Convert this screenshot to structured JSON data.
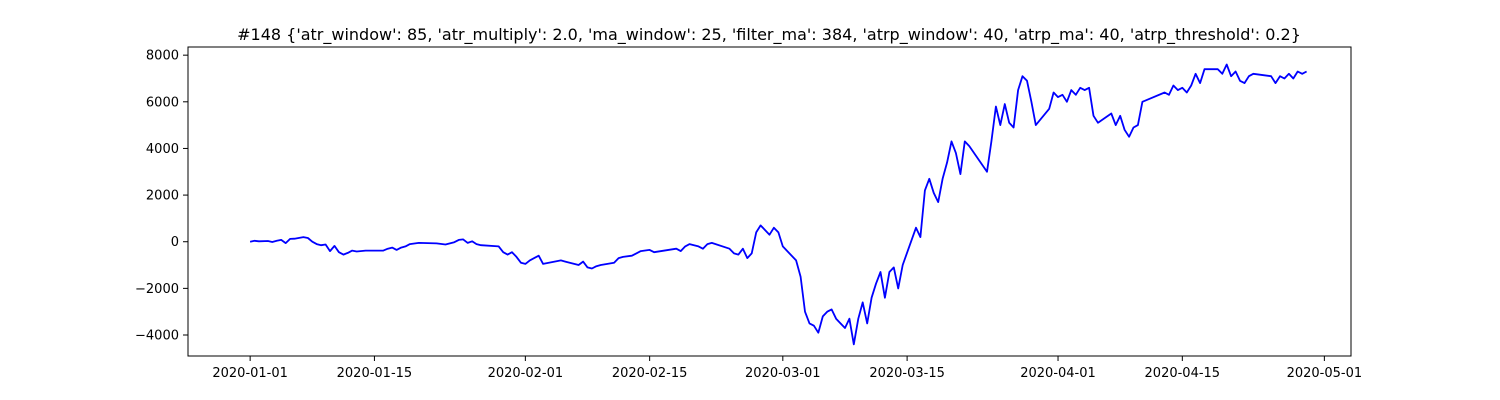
{
  "chart_data": {
    "type": "line",
    "title": "#148 {'atr_window': 85, 'atr_multiply': 2.0, 'ma_window': 25, 'filter_ma': 384, 'atrp_window': 40, 'atrp_ma': 40, 'atrp_threshold': 0.2}",
    "xlabel": "",
    "ylabel": "",
    "x_is_date": true,
    "xlim": [
      "2019-12-25",
      "2020-05-04"
    ],
    "ylim": [
      -4900,
      8350
    ],
    "grid": false,
    "legend": "none",
    "x_ticks": [
      "2020-01-01",
      "2020-01-15",
      "2020-02-01",
      "2020-02-15",
      "2020-03-01",
      "2020-03-15",
      "2020-04-01",
      "2020-04-15",
      "2020-05-01"
    ],
    "y_ticks": [
      -4000,
      -2000,
      0,
      2000,
      4000,
      6000,
      8000
    ],
    "series": [
      {
        "color": "#0000ff",
        "points": [
          [
            "2020-01-01",
            0
          ],
          [
            "2020-01-01T12:00",
            40
          ],
          [
            "2020-01-02",
            20
          ],
          [
            "2020-01-03",
            30
          ],
          [
            "2020-01-03T12:00",
            -10
          ],
          [
            "2020-01-04",
            40
          ],
          [
            "2020-01-04T12:00",
            80
          ],
          [
            "2020-01-05",
            -60
          ],
          [
            "2020-01-05T12:00",
            120
          ],
          [
            "2020-01-06",
            130
          ],
          [
            "2020-01-07",
            200
          ],
          [
            "2020-01-07T12:00",
            160
          ],
          [
            "2020-01-08",
            0
          ],
          [
            "2020-01-08T12:00",
            -100
          ],
          [
            "2020-01-09",
            -150
          ],
          [
            "2020-01-09T12:00",
            -120
          ],
          [
            "2020-01-10",
            -400
          ],
          [
            "2020-01-10T12:00",
            -180
          ],
          [
            "2020-01-11",
            -450
          ],
          [
            "2020-01-11T12:00",
            -550
          ],
          [
            "2020-01-12",
            -480
          ],
          [
            "2020-01-12T12:00",
            -380
          ],
          [
            "2020-01-13",
            -420
          ],
          [
            "2020-01-14",
            -380
          ],
          [
            "2020-01-16",
            -380
          ],
          [
            "2020-01-16T12:00",
            -300
          ],
          [
            "2020-01-17",
            -250
          ],
          [
            "2020-01-17T12:00",
            -350
          ],
          [
            "2020-01-18",
            -250
          ],
          [
            "2020-01-18T12:00",
            -200
          ],
          [
            "2020-01-19",
            -100
          ],
          [
            "2020-01-20",
            -50
          ],
          [
            "2020-01-21",
            -60
          ],
          [
            "2020-01-22",
            -70
          ],
          [
            "2020-01-23",
            -120
          ],
          [
            "2020-01-24",
            -20
          ],
          [
            "2020-01-24T12:00",
            80
          ],
          [
            "2020-01-25",
            100
          ],
          [
            "2020-01-25T12:00",
            -50
          ],
          [
            "2020-01-26",
            20
          ],
          [
            "2020-01-26T12:00",
            -100
          ],
          [
            "2020-01-27",
            -150
          ],
          [
            "2020-01-29",
            -200
          ],
          [
            "2020-01-29T12:00",
            -450
          ],
          [
            "2020-01-30",
            -550
          ],
          [
            "2020-01-30T12:00",
            -450
          ],
          [
            "2020-01-31",
            -650
          ],
          [
            "2020-01-31T12:00",
            -900
          ],
          [
            "2020-02-01",
            -950
          ],
          [
            "2020-02-01T12:00",
            -800
          ],
          [
            "2020-02-02",
            -700
          ],
          [
            "2020-02-02T12:00",
            -600
          ],
          [
            "2020-02-03",
            -950
          ],
          [
            "2020-02-05",
            -800
          ],
          [
            "2020-02-05T12:00",
            -850
          ],
          [
            "2020-02-06",
            -900
          ],
          [
            "2020-02-06T12:00",
            -950
          ],
          [
            "2020-02-07",
            -1000
          ],
          [
            "2020-02-07T12:00",
            -850
          ],
          [
            "2020-02-08",
            -1100
          ],
          [
            "2020-02-08T12:00",
            -1150
          ],
          [
            "2020-02-09",
            -1050
          ],
          [
            "2020-02-09T12:00",
            -1000
          ],
          [
            "2020-02-11",
            -900
          ],
          [
            "2020-02-11T12:00",
            -700
          ],
          [
            "2020-02-12",
            -650
          ],
          [
            "2020-02-13",
            -600
          ],
          [
            "2020-02-13T12:00",
            -500
          ],
          [
            "2020-02-14",
            -400
          ],
          [
            "2020-02-15",
            -350
          ],
          [
            "2020-02-15T12:00",
            -450
          ],
          [
            "2020-02-18",
            -300
          ],
          [
            "2020-02-18T12:00",
            -400
          ],
          [
            "2020-02-19",
            -200
          ],
          [
            "2020-02-19T12:00",
            -100
          ],
          [
            "2020-02-20",
            -150
          ],
          [
            "2020-02-20T12:00",
            -200
          ],
          [
            "2020-02-21",
            -300
          ],
          [
            "2020-02-21T12:00",
            -100
          ],
          [
            "2020-02-22",
            -50
          ],
          [
            "2020-02-24",
            -300
          ],
          [
            "2020-02-24T12:00",
            -500
          ],
          [
            "2020-02-25",
            -550
          ],
          [
            "2020-02-25T12:00",
            -300
          ],
          [
            "2020-02-26",
            -700
          ],
          [
            "2020-02-26T12:00",
            -500
          ],
          [
            "2020-02-27",
            400
          ],
          [
            "2020-02-27T12:00",
            700
          ],
          [
            "2020-02-28",
            500
          ],
          [
            "2020-02-28T12:00",
            300
          ],
          [
            "2020-02-29",
            600
          ],
          [
            "2020-02-29T12:00",
            400
          ],
          [
            "2020-03-01",
            -200
          ],
          [
            "2020-03-02T12:00",
            -800
          ],
          [
            "2020-03-03",
            -1500
          ],
          [
            "2020-03-03T12:00",
            -3000
          ],
          [
            "2020-03-04",
            -3500
          ],
          [
            "2020-03-04T12:00",
            -3600
          ],
          [
            "2020-03-05",
            -3900
          ],
          [
            "2020-03-05T12:00",
            -3200
          ],
          [
            "2020-03-06",
            -3000
          ],
          [
            "2020-03-06T12:00",
            -2900
          ],
          [
            "2020-03-07",
            -3300
          ],
          [
            "2020-03-07T12:00",
            -3500
          ],
          [
            "2020-03-08",
            -3700
          ],
          [
            "2020-03-08T12:00",
            -3300
          ],
          [
            "2020-03-09",
            -4400
          ],
          [
            "2020-03-09T12:00",
            -3300
          ],
          [
            "2020-03-10",
            -2600
          ],
          [
            "2020-03-10T12:00",
            -3500
          ],
          [
            "2020-03-11",
            -2400
          ],
          [
            "2020-03-11T12:00",
            -1800
          ],
          [
            "2020-03-12",
            -1300
          ],
          [
            "2020-03-12T12:00",
            -2400
          ],
          [
            "2020-03-13",
            -1300
          ],
          [
            "2020-03-13T12:00",
            -1100
          ],
          [
            "2020-03-14",
            -2000
          ],
          [
            "2020-03-14T12:00",
            -1000
          ],
          [
            "2020-03-16",
            600
          ],
          [
            "2020-03-16T12:00",
            200
          ],
          [
            "2020-03-17",
            2200
          ],
          [
            "2020-03-17T12:00",
            2700
          ],
          [
            "2020-03-18",
            2100
          ],
          [
            "2020-03-18T12:00",
            1700
          ],
          [
            "2020-03-19",
            2700
          ],
          [
            "2020-03-19T12:00",
            3400
          ],
          [
            "2020-03-20",
            4300
          ],
          [
            "2020-03-20T12:00",
            3800
          ],
          [
            "2020-03-21",
            2900
          ],
          [
            "2020-03-21T12:00",
            4300
          ],
          [
            "2020-03-22",
            4100
          ],
          [
            "2020-03-24",
            3000
          ],
          [
            "2020-03-24T12:00",
            4300
          ],
          [
            "2020-03-25",
            5800
          ],
          [
            "2020-03-25T12:00",
            5000
          ],
          [
            "2020-03-26",
            5900
          ],
          [
            "2020-03-26T12:00",
            5100
          ],
          [
            "2020-03-27",
            4900
          ],
          [
            "2020-03-27T12:00",
            6500
          ],
          [
            "2020-03-28",
            7100
          ],
          [
            "2020-03-28T12:00",
            6900
          ],
          [
            "2020-03-29",
            6000
          ],
          [
            "2020-03-29T12:00",
            5000
          ],
          [
            "2020-03-31",
            5700
          ],
          [
            "2020-03-31T12:00",
            6400
          ],
          [
            "2020-04-01",
            6200
          ],
          [
            "2020-04-01T12:00",
            6300
          ],
          [
            "2020-04-02",
            6000
          ],
          [
            "2020-04-02T12:00",
            6500
          ],
          [
            "2020-04-03",
            6300
          ],
          [
            "2020-04-03T12:00",
            6600
          ],
          [
            "2020-04-04",
            6500
          ],
          [
            "2020-04-04T12:00",
            6600
          ],
          [
            "2020-04-05",
            5400
          ],
          [
            "2020-04-05T12:00",
            5100
          ],
          [
            "2020-04-07",
            5500
          ],
          [
            "2020-04-07T12:00",
            5000
          ],
          [
            "2020-04-08",
            5400
          ],
          [
            "2020-04-08T12:00",
            4800
          ],
          [
            "2020-04-09",
            4500
          ],
          [
            "2020-04-09T12:00",
            4900
          ],
          [
            "2020-04-10",
            5000
          ],
          [
            "2020-04-10T12:00",
            6000
          ],
          [
            "2020-04-13",
            6400
          ],
          [
            "2020-04-13T12:00",
            6300
          ],
          [
            "2020-04-14",
            6700
          ],
          [
            "2020-04-14T12:00",
            6500
          ],
          [
            "2020-04-15",
            6600
          ],
          [
            "2020-04-15T12:00",
            6400
          ],
          [
            "2020-04-16",
            6700
          ],
          [
            "2020-04-16T12:00",
            7200
          ],
          [
            "2020-04-17",
            6800
          ],
          [
            "2020-04-17T12:00",
            7400
          ],
          [
            "2020-04-19",
            7400
          ],
          [
            "2020-04-19T12:00",
            7200
          ],
          [
            "2020-04-20",
            7600
          ],
          [
            "2020-04-20T12:00",
            7100
          ],
          [
            "2020-04-21",
            7300
          ],
          [
            "2020-04-21T12:00",
            6900
          ],
          [
            "2020-04-22",
            6800
          ],
          [
            "2020-04-22T12:00",
            7100
          ],
          [
            "2020-04-23",
            7200
          ],
          [
            "2020-04-25",
            7100
          ],
          [
            "2020-04-25T12:00",
            6800
          ],
          [
            "2020-04-26",
            7100
          ],
          [
            "2020-04-26T12:00",
            7000
          ],
          [
            "2020-04-27",
            7200
          ],
          [
            "2020-04-27T12:00",
            7000
          ],
          [
            "2020-04-28",
            7300
          ],
          [
            "2020-04-28T12:00",
            7200
          ],
          [
            "2020-04-29",
            7300
          ]
        ]
      }
    ]
  }
}
